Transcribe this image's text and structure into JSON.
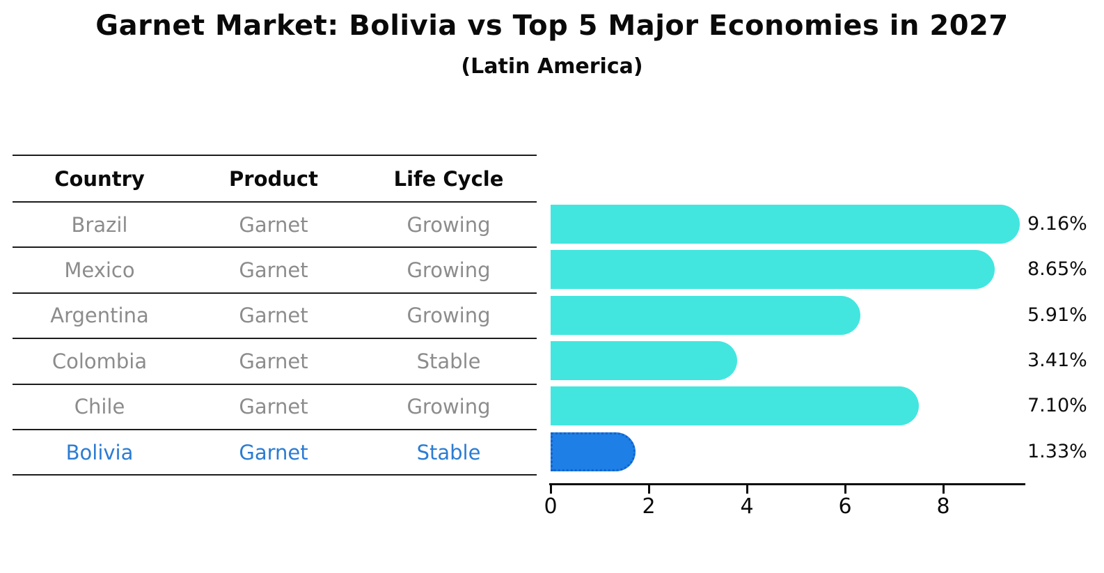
{
  "title": "Garnet Market: Bolivia vs Top 5 Major Economies in 2027",
  "subtitle": "(Latin America)",
  "table": {
    "headers": [
      "Country",
      "Product",
      "Life Cycle"
    ],
    "rows": [
      {
        "country": "Brazil",
        "product": "Garnet",
        "life_cycle": "Growing",
        "highlight": false
      },
      {
        "country": "Mexico",
        "product": "Garnet",
        "life_cycle": "Growing",
        "highlight": false
      },
      {
        "country": "Argentina",
        "product": "Garnet",
        "life_cycle": "Growing",
        "highlight": false
      },
      {
        "country": "Colombia",
        "product": "Garnet",
        "life_cycle": "Stable",
        "highlight": false
      },
      {
        "country": "Chile",
        "product": "Garnet",
        "life_cycle": "Growing",
        "highlight": false
      },
      {
        "country": "Bolivia",
        "product": "Garnet",
        "life_cycle": "Stable",
        "highlight": true
      }
    ]
  },
  "chart_data": {
    "type": "bar",
    "orientation": "horizontal",
    "title": "Garnet Market: Bolivia vs Top 5 Major Economies in 2027",
    "subtitle": "(Latin America)",
    "categories": [
      "Brazil",
      "Mexico",
      "Argentina",
      "Colombia",
      "Chile",
      "Bolivia"
    ],
    "values": [
      9.16,
      8.65,
      5.91,
      3.41,
      7.1,
      1.33
    ],
    "value_labels": [
      "9.16%",
      "8.65%",
      "5.91%",
      "3.41%",
      "7.10%",
      "1.33%"
    ],
    "highlight_index": 5,
    "xlim": [
      0,
      9.65
    ],
    "xticks": [
      "0",
      "2",
      "4",
      "6",
      "8"
    ],
    "grid": false,
    "legend": false
  },
  "colors": {
    "bar_default": "#42E6DF",
    "bar_highlight": "#1E7FE6",
    "bar_highlight_edge": "#1263CC",
    "highlight_text": "#2B7CD3",
    "table_text": "#8C8C8C",
    "strong_text": "#0A0A0A"
  }
}
